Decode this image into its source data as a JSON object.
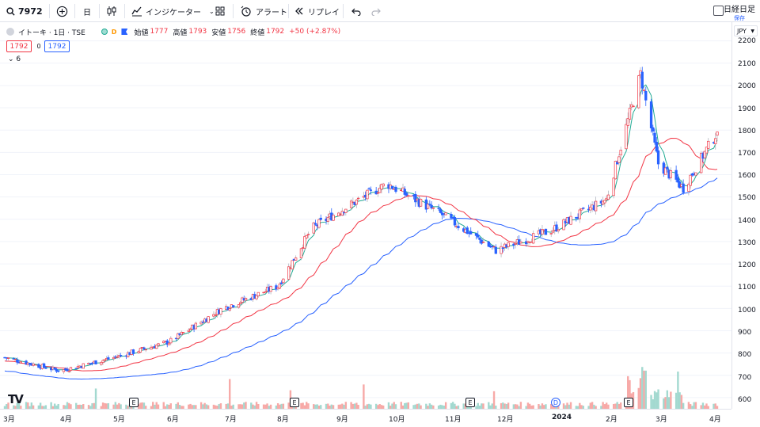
{
  "toolbar": {
    "symbol": "7972",
    "interval": "日",
    "indicators_label": "インジケーター",
    "alert_label": "アラート",
    "replay_label": "リプレイ",
    "nikkei_label": "日経日足",
    "save_label": "保存"
  },
  "legend": {
    "title": "イトーキ · 1日 · TSE",
    "d_badge": "D",
    "open_label": "始値",
    "open": "1777",
    "high_label": "高値",
    "high": "1793",
    "low_label": "安値",
    "low": "1756",
    "close_label": "終値",
    "close": "1792",
    "change": "+50 (+2.87%)",
    "price_box_red": "1792",
    "price_box_zero": "0",
    "price_box_blue": "1792",
    "collapse_count": "6"
  },
  "price_axis": {
    "currency": "JPY",
    "ticks": [
      "2200",
      "2100",
      "2000",
      "1900",
      "1800",
      "1700",
      "1600",
      "1500",
      "1400",
      "1300",
      "1200",
      "1100",
      "1000",
      "900",
      "800",
      "700",
      "600"
    ]
  },
  "time_axis": {
    "ticks": [
      "3月",
      "4月",
      "5月",
      "6月",
      "7月",
      "8月",
      "9月",
      "10月",
      "11月",
      "12月",
      "2024",
      "2月",
      "3月",
      "4月"
    ]
  },
  "markers": {
    "earnings": [
      "E",
      "E",
      "E",
      "E"
    ],
    "dividend": "D"
  },
  "colors": {
    "up": "#f23645",
    "down": "#2962ff",
    "ma_short": "#22ab94",
    "ma_mid": "#f23645",
    "ma_long": "#2962ff",
    "vol_up": "#f7a9a7",
    "vol_down": "#a3d9d0"
  },
  "chart_data": {
    "type": "candlestick",
    "y_range": [
      550,
      2220
    ],
    "x_range": [
      "2023-03-01",
      "2024-04-03"
    ],
    "key_points": [
      {
        "date": "2023-03-01",
        "price": 780
      },
      {
        "date": "2023-04-01",
        "price": 720
      },
      {
        "date": "2023-05-01",
        "price": 780
      },
      {
        "date": "2023-06-01",
        "price": 850
      },
      {
        "date": "2023-07-01",
        "price": 1000
      },
      {
        "date": "2023-08-01",
        "price": 1100
      },
      {
        "date": "2023-08-20",
        "price": 1360
      },
      {
        "date": "2023-09-01",
        "price": 1420
      },
      {
        "date": "2023-10-01",
        "price": 1560
      },
      {
        "date": "2023-11-01",
        "price": 1420
      },
      {
        "date": "2023-12-01",
        "price": 1260
      },
      {
        "date": "2024-01-01",
        "price": 1350
      },
      {
        "date": "2024-02-01",
        "price": 1490
      },
      {
        "date": "2024-02-20",
        "price": 2050
      },
      {
        "date": "2024-03-01",
        "price": 1650
      },
      {
        "date": "2024-03-15",
        "price": 1540
      },
      {
        "date": "2024-04-03",
        "price": 1792
      }
    ]
  }
}
